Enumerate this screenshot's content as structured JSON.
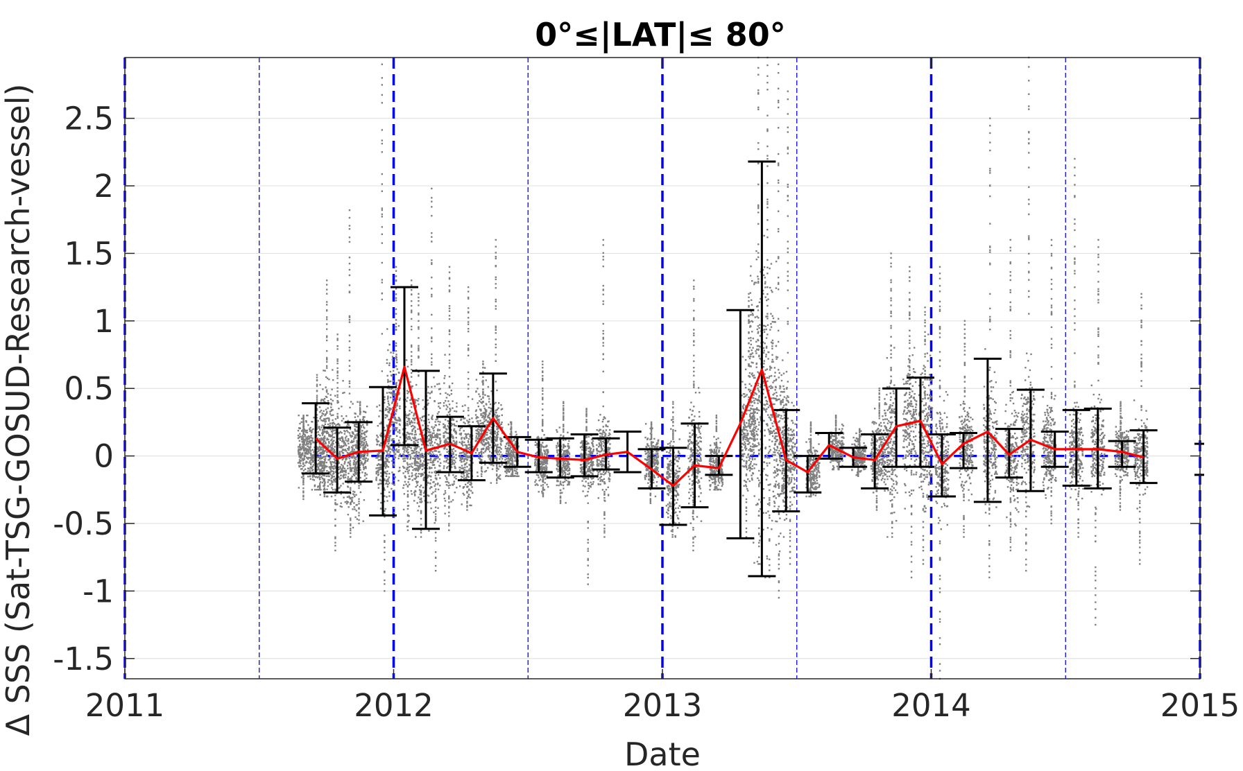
{
  "chart_data": {
    "type": "scatter",
    "title": "0°≤|LAT|≤ 80°",
    "xlabel": "Date",
    "ylabel": "Δ SSS (Sat-TSG-GOSUD-Research-vessel)",
    "xlim": [
      2011.0,
      2015.0
    ],
    "ylim": [
      -1.65,
      2.95
    ],
    "x_ticks": [
      2011,
      2012,
      2013,
      2014,
      2015
    ],
    "x_tick_labels": [
      "2011",
      "2012",
      "2013",
      "2014",
      "2015"
    ],
    "y_ticks": [
      -1.5,
      -1,
      -0.5,
      0,
      0.5,
      1,
      1.5,
      2,
      2.5
    ],
    "y_tick_labels": [
      "-1.5",
      "-1",
      "-0.5",
      "0",
      "0.5",
      "1",
      "1.5",
      "2",
      "2.5"
    ],
    "grid": "horizontal",
    "colors": {
      "scatter": "#808080",
      "mean_line": "#ff0000",
      "error_bars": "#000000",
      "reference_lines": "#0000ff"
    },
    "year_markers": [
      2011.0,
      2012.0,
      2013.0,
      2014.0,
      2015.0
    ],
    "half_year_markers": [
      2011.5,
      2012.5,
      2013.5,
      2014.5
    ],
    "zero_reference": {
      "x": [
        2011.7,
        2014.8
      ],
      "y": 0
    },
    "monthly_mean": {
      "x": [
        2011.71,
        2011.79,
        2011.87,
        2011.96,
        2012.04,
        2012.12,
        2012.21,
        2012.29,
        2012.37,
        2012.46,
        2012.54,
        2012.62,
        2012.71,
        2012.79,
        2012.87,
        2012.96,
        2013.04,
        2013.12,
        2013.21,
        2013.29,
        2013.37,
        2013.46,
        2013.54,
        2013.62,
        2013.71,
        2013.79,
        2013.87,
        2013.96,
        2014.04,
        2014.12,
        2014.21,
        2014.29,
        2014.37,
        2014.46,
        2014.54,
        2014.62,
        2014.71,
        2014.79
      ],
      "mean": [
        0.13,
        -0.02,
        0.03,
        0.04,
        0.66,
        0.04,
        0.09,
        0.02,
        0.28,
        0.03,
        -0.01,
        -0.02,
        -0.03,
        0.01,
        0.03,
        -0.1,
        -0.22,
        -0.07,
        -0.09,
        0.24,
        0.64,
        -0.03,
        -0.12,
        0.08,
        -0.01,
        -0.03,
        0.22,
        0.26,
        -0.06,
        0.09,
        0.18,
        0.01,
        0.12,
        0.05,
        0.05,
        0.05,
        0.03,
        -0.01
      ],
      "err_low": [
        -0.13,
        -0.27,
        -0.19,
        -0.44,
        0.08,
        -0.54,
        -0.12,
        -0.18,
        -0.05,
        -0.08,
        -0.12,
        -0.16,
        -0.15,
        -0.1,
        -0.12,
        -0.24,
        -0.51,
        -0.38,
        -0.14,
        -0.61,
        -0.89,
        -0.41,
        -0.27,
        -0.02,
        -0.08,
        -0.24,
        -0.08,
        -0.08,
        -0.3,
        -0.09,
        -0.34,
        -0.16,
        -0.26,
        -0.08,
        -0.22,
        -0.24,
        -0.08,
        -0.2
      ],
      "err_high": [
        0.39,
        0.21,
        0.25,
        0.51,
        1.25,
        0.63,
        0.29,
        0.22,
        0.61,
        0.14,
        0.12,
        0.13,
        0.16,
        0.13,
        0.18,
        0.05,
        0.06,
        0.24,
        0.0,
        1.08,
        2.18,
        0.34,
        0.0,
        0.17,
        0.06,
        0.16,
        0.5,
        0.58,
        0.16,
        0.17,
        0.72,
        0.2,
        0.49,
        0.18,
        0.34,
        0.35,
        0.11,
        0.19
      ]
    },
    "scatter_clusters": [
      {
        "x": 2011.67,
        "center": 0.05,
        "spread": 0.18,
        "max": 0.3,
        "min": -0.32
      },
      {
        "x": 2011.72,
        "center": 0.0,
        "spread": 0.25,
        "max": 0.6,
        "min": -0.25
      },
      {
        "x": 2011.75,
        "center": 0.1,
        "spread": 0.35,
        "max": 1.3,
        "min": -0.3
      },
      {
        "x": 2011.79,
        "center": 0.0,
        "spread": 0.3,
        "max": 0.9,
        "min": -0.7
      },
      {
        "x": 2011.84,
        "center": -0.05,
        "spread": 0.3,
        "max": 1.82,
        "min": -0.6
      },
      {
        "x": 2011.88,
        "center": 0.05,
        "spread": 0.2,
        "max": 0.4,
        "min": -0.5
      },
      {
        "x": 2011.96,
        "center": 0.0,
        "spread": 0.3,
        "max": 2.9,
        "min": -1.0
      },
      {
        "x": 2012.0,
        "center": 0.3,
        "spread": 0.4,
        "max": 1.4,
        "min": -0.45
      },
      {
        "x": 2012.06,
        "center": 0.1,
        "spread": 0.35,
        "max": 1.3,
        "min": -0.55
      },
      {
        "x": 2012.1,
        "center": 0.0,
        "spread": 0.3,
        "max": 1.2,
        "min": -0.6
      },
      {
        "x": 2012.15,
        "center": 0.05,
        "spread": 0.35,
        "max": 1.98,
        "min": -0.85
      },
      {
        "x": 2012.21,
        "center": 0.1,
        "spread": 0.3,
        "max": 1.4,
        "min": -0.55
      },
      {
        "x": 2012.27,
        "center": 0.0,
        "spread": 0.25,
        "max": 1.25,
        "min": -0.4
      },
      {
        "x": 2012.33,
        "center": 0.2,
        "spread": 0.25,
        "max": 0.7,
        "min": -0.15
      },
      {
        "x": 2012.38,
        "center": 0.15,
        "spread": 0.25,
        "max": 1.6,
        "min": -0.2
      },
      {
        "x": 2012.44,
        "center": 0.0,
        "spread": 0.15,
        "max": 0.25,
        "min": -0.15
      },
      {
        "x": 2012.55,
        "center": -0.05,
        "spread": 0.15,
        "max": 0.7,
        "min": -0.3
      },
      {
        "x": 2012.63,
        "center": -0.05,
        "spread": 0.15,
        "max": 0.4,
        "min": -0.35
      },
      {
        "x": 2012.72,
        "center": -0.05,
        "spread": 0.15,
        "max": 0.35,
        "min": -0.95
      },
      {
        "x": 2012.78,
        "center": 0.0,
        "spread": 0.2,
        "max": 1.6,
        "min": -0.6
      },
      {
        "x": 2012.96,
        "center": -0.05,
        "spread": 0.15,
        "max": 0.25,
        "min": -0.35
      },
      {
        "x": 2013.04,
        "center": -0.2,
        "spread": 0.25,
        "max": 0.4,
        "min": -0.6
      },
      {
        "x": 2013.12,
        "center": -0.05,
        "spread": 0.3,
        "max": 1.3,
        "min": -0.7
      },
      {
        "x": 2013.2,
        "center": -0.1,
        "spread": 0.15,
        "max": 0.3,
        "min": -0.25
      },
      {
        "x": 2013.32,
        "center": 0.2,
        "spread": 0.35,
        "max": 1.2,
        "min": -0.6
      },
      {
        "x": 2013.35,
        "center": 0.5,
        "spread": 0.8,
        "max": 2.95,
        "min": -0.8
      },
      {
        "x": 2013.4,
        "center": 0.4,
        "spread": 0.8,
        "max": 2.95,
        "min": -0.9
      },
      {
        "x": 2013.44,
        "center": 0.1,
        "spread": 0.5,
        "max": 2.9,
        "min": -1.05
      },
      {
        "x": 2013.47,
        "center": 0.0,
        "spread": 0.3,
        "max": 2.7,
        "min": -0.8
      },
      {
        "x": 2013.56,
        "center": -0.1,
        "spread": 0.15,
        "max": 0.25,
        "min": -0.3
      },
      {
        "x": 2013.65,
        "center": 0.05,
        "spread": 0.1,
        "max": 0.3,
        "min": -0.1
      },
      {
        "x": 2013.73,
        "center": 0.0,
        "spread": 0.1,
        "max": 0.2,
        "min": -0.15
      },
      {
        "x": 2013.8,
        "center": 0.0,
        "spread": 0.2,
        "max": 0.5,
        "min": -0.4
      },
      {
        "x": 2013.85,
        "center": 0.1,
        "spread": 0.35,
        "max": 1.5,
        "min": -0.6
      },
      {
        "x": 2013.92,
        "center": 0.25,
        "spread": 0.4,
        "max": 1.4,
        "min": -0.9
      },
      {
        "x": 2013.98,
        "center": 0.1,
        "spread": 0.4,
        "max": 1.1,
        "min": -0.8
      },
      {
        "x": 2014.04,
        "center": -0.05,
        "spread": 0.3,
        "max": 1.4,
        "min": -1.65
      },
      {
        "x": 2014.13,
        "center": 0.05,
        "spread": 0.25,
        "max": 1.0,
        "min": -0.6
      },
      {
        "x": 2014.22,
        "center": 0.1,
        "spread": 0.35,
        "max": 2.5,
        "min": -0.9
      },
      {
        "x": 2014.3,
        "center": 0.0,
        "spread": 0.3,
        "max": 1.6,
        "min": -0.7
      },
      {
        "x": 2014.36,
        "center": 0.15,
        "spread": 0.35,
        "max": 2.95,
        "min": -0.85
      },
      {
        "x": 2014.44,
        "center": 0.05,
        "spread": 0.25,
        "max": 1.6,
        "min": -0.5
      },
      {
        "x": 2014.54,
        "center": 0.05,
        "spread": 0.25,
        "max": 2.2,
        "min": -0.6
      },
      {
        "x": 2014.62,
        "center": 0.05,
        "spread": 0.25,
        "max": 1.6,
        "min": -1.25
      },
      {
        "x": 2014.71,
        "center": 0.03,
        "spread": 0.15,
        "max": 0.4,
        "min": -0.4
      },
      {
        "x": 2014.78,
        "center": 0.0,
        "spread": 0.2,
        "max": 1.2,
        "min": -0.8
      }
    ],
    "edge_marker": {
      "x": 2015.0,
      "y_low": -0.14,
      "y_high": 0.09
    }
  }
}
